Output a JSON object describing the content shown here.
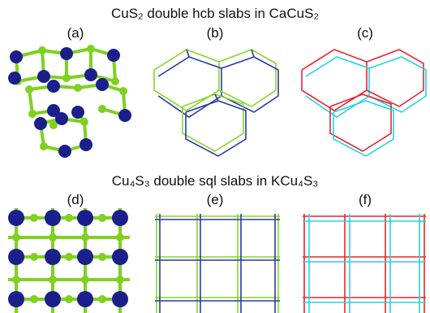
{
  "title_top": "CuS₂ double hcb slabs in CaCuS₂",
  "title_bottom": "Cu₄S₃ double sql slabs in KCu₄S₃",
  "panels": {
    "a": "(a)",
    "b": "(b)",
    "c": "(c)",
    "d": "(d)",
    "e": "(e)",
    "f": "(f)"
  },
  "colors": {
    "cu_atom": "#1a1f8c",
    "s_atom": "#7fd11f",
    "bond_blue": "#2b3aa0",
    "bond_green": "#86d62a",
    "red_edge": "#e8262b",
    "cyan_edge": "#22d4e0"
  }
}
